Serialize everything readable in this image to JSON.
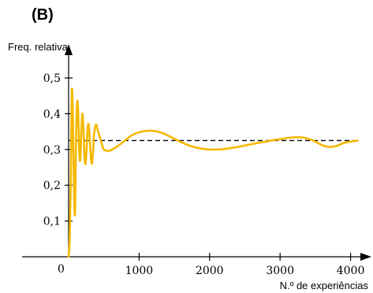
{
  "chart_data": {
    "type": "line",
    "panel_label": "(B)",
    "ylabel": "Freq. relativa",
    "xlabel": "N.º de experiências",
    "xlim": [
      0,
      4100
    ],
    "ylim": [
      0,
      0.5
    ],
    "x_ticks": [
      1000,
      2000,
      3000,
      4000
    ],
    "x_tick_labels": [
      "1000",
      "2000",
      "3000",
      "4000"
    ],
    "y_ticks": [
      0.1,
      0.2,
      0.3,
      0.4,
      0.5
    ],
    "y_tick_labels": [
      "0,1",
      "0,2",
      "0,3",
      "0,4",
      "0,5"
    ],
    "origin_label": "0",
    "grid": false,
    "reference_line": {
      "y": 0.325,
      "style": "dashed",
      "color": "#000000"
    },
    "series_color": "#f5b800",
    "series": [
      {
        "x": [
          0,
          15,
          30,
          45,
          60,
          75,
          90,
          105,
          120,
          135,
          150,
          165,
          180,
          195,
          210,
          225,
          240,
          255,
          270,
          285,
          300,
          315,
          330,
          345,
          360,
          375,
          390,
          405,
          420,
          435,
          450,
          465,
          480,
          500,
          550,
          600,
          700,
          800,
          900,
          1000,
          1100,
          1200,
          1300,
          1400,
          1500,
          1600,
          1700,
          1800,
          1900,
          2000,
          2100,
          2200,
          2300,
          2400,
          2500,
          2600,
          2700,
          2800,
          2900,
          3000,
          3100,
          3200,
          3300,
          3400,
          3500,
          3600,
          3700,
          3800,
          3900,
          4000,
          4100
        ],
        "values": [
          0.0,
          0.05,
          0.2,
          0.46,
          0.4,
          0.2,
          0.12,
          0.32,
          0.43,
          0.41,
          0.3,
          0.27,
          0.35,
          0.4,
          0.36,
          0.28,
          0.26,
          0.3,
          0.36,
          0.37,
          0.33,
          0.28,
          0.26,
          0.29,
          0.34,
          0.36,
          0.37,
          0.36,
          0.35,
          0.34,
          0.33,
          0.32,
          0.31,
          0.3,
          0.296,
          0.298,
          0.31,
          0.325,
          0.34,
          0.348,
          0.352,
          0.352,
          0.348,
          0.34,
          0.33,
          0.32,
          0.312,
          0.306,
          0.302,
          0.3,
          0.3,
          0.301,
          0.304,
          0.307,
          0.311,
          0.315,
          0.319,
          0.322,
          0.326,
          0.329,
          0.332,
          0.334,
          0.334,
          0.33,
          0.322,
          0.312,
          0.307,
          0.31,
          0.318,
          0.322,
          0.325
        ]
      }
    ]
  }
}
